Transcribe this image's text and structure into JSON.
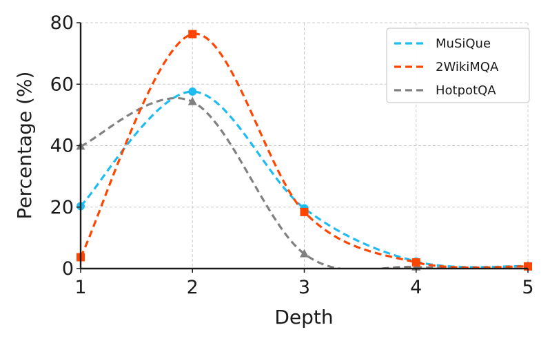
{
  "chart_data": {
    "type": "line",
    "xlabel": "Depth",
    "ylabel": "Percentage (%)",
    "xlim": [
      1,
      5
    ],
    "ylim": [
      0,
      80
    ],
    "x_ticks": [
      1,
      2,
      3,
      4,
      5
    ],
    "y_ticks": [
      0,
      20,
      40,
      60,
      80
    ],
    "grid": true,
    "legend_position": "top-right",
    "line_style": "dashed, smoothed",
    "x": [
      1,
      2,
      3,
      4,
      5
    ],
    "series": [
      {
        "name": "MuSiQue",
        "values": [
          20.3,
          57.6,
          19.6,
          2.3,
          0.8
        ],
        "color": "#1ebcf0",
        "marker": "circle"
      },
      {
        "name": "2WikiMQA",
        "values": [
          3.7,
          76.3,
          18.4,
          2.0,
          0.7
        ],
        "color": "#ff4500",
        "marker": "square"
      },
      {
        "name": "HotpotQA",
        "values": [
          39.8,
          54.3,
          4.8,
          0.5,
          0.8
        ],
        "color": "#808080",
        "marker": "triangle"
      }
    ]
  }
}
